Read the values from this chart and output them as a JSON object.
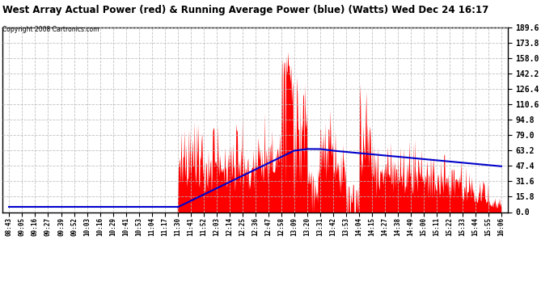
{
  "title": "West Array Actual Power (red) & Running Average Power (blue) (Watts) Wed Dec 24 16:17",
  "copyright": "Copyright 2008 Cartronics.com",
  "ylabel_right_ticks": [
    0.0,
    15.8,
    31.6,
    47.4,
    63.2,
    79.0,
    94.8,
    110.6,
    126.4,
    142.2,
    158.0,
    173.8,
    189.6
  ],
  "ymax": 189.6,
  "ymin": 0.0,
  "bg_color": "#ffffff",
  "plot_bg_color": "#ffffff",
  "grid_color": "#bbbbbb",
  "actual_color": "#ff0000",
  "avg_color": "#0000cc",
  "x_tick_labels": [
    "08:43",
    "09:05",
    "09:16",
    "09:27",
    "09:39",
    "09:52",
    "10:03",
    "10:16",
    "10:29",
    "10:41",
    "10:53",
    "11:04",
    "11:17",
    "11:30",
    "11:41",
    "11:52",
    "12:03",
    "12:14",
    "12:25",
    "12:36",
    "12:47",
    "12:58",
    "13:09",
    "13:20",
    "13:31",
    "13:42",
    "13:53",
    "14:04",
    "14:15",
    "14:27",
    "14:38",
    "14:49",
    "15:00",
    "15:11",
    "15:22",
    "15:33",
    "15:44",
    "15:55",
    "16:06"
  ],
  "n_ticks": 39
}
